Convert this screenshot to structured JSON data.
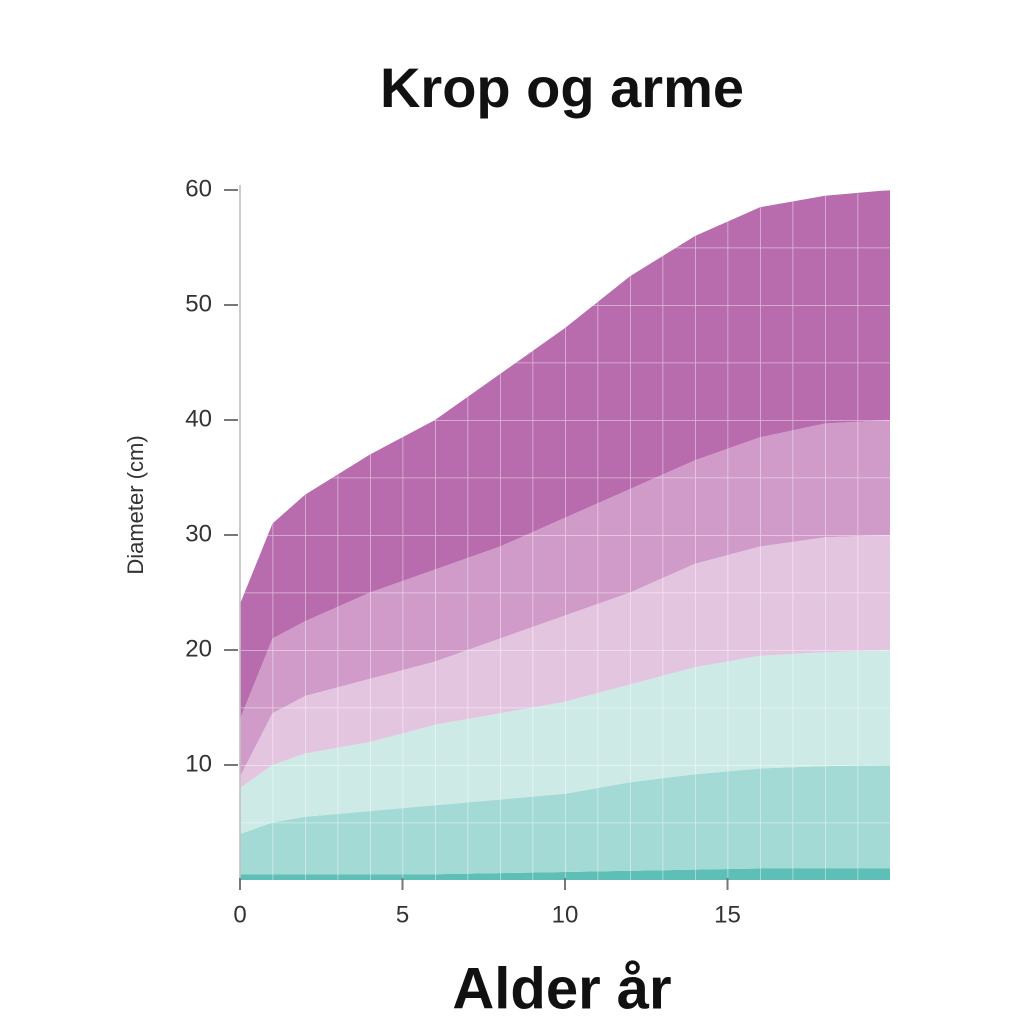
{
  "chart_data": {
    "type": "stacked-area",
    "title": "Krop og arme",
    "xlabel": "Alder år",
    "ylabel": "Diameter (cm)",
    "x": [
      0,
      1,
      2,
      4,
      6,
      8,
      10,
      12,
      14,
      16,
      18,
      20
    ],
    "xlim": [
      0,
      20
    ],
    "xticks": [
      0,
      5,
      10,
      15
    ],
    "ylim": [
      0,
      60
    ],
    "yticks": [
      10,
      20,
      30,
      40,
      50,
      60
    ],
    "grid": true,
    "series": [
      {
        "color": "#5dbfb5",
        "values": [
          0.5,
          0.5,
          0.5,
          0.5,
          0.5,
          0.6,
          0.7,
          0.8,
          0.9,
          1,
          1,
          1
        ]
      },
      {
        "color": "#a3dad5",
        "values": [
          3.5,
          4.5,
          5,
          5.5,
          6,
          6.4,
          6.8,
          7.7,
          8.3,
          8.7,
          8.9,
          9
        ]
      },
      {
        "color": "#cdeae7",
        "values": [
          4,
          5,
          5.5,
          6,
          7,
          7.5,
          8,
          8.5,
          9.3,
          9.8,
          9.9,
          10
        ]
      },
      {
        "color": "#e4c5e0",
        "values": [
          1,
          4.5,
          5,
          5.5,
          5.5,
          6.5,
          7.5,
          8,
          9,
          9.5,
          10,
          10
        ]
      },
      {
        "color": "#d09bc9",
        "values": [
          5,
          6.5,
          6.5,
          7.5,
          8,
          8,
          8.5,
          9,
          9,
          9.5,
          9.9,
          10
        ]
      },
      {
        "color": "#b86bad",
        "values": [
          10,
          10,
          11,
          12,
          13,
          15,
          16.5,
          18.5,
          19.5,
          20,
          19.8,
          20
        ]
      }
    ]
  }
}
